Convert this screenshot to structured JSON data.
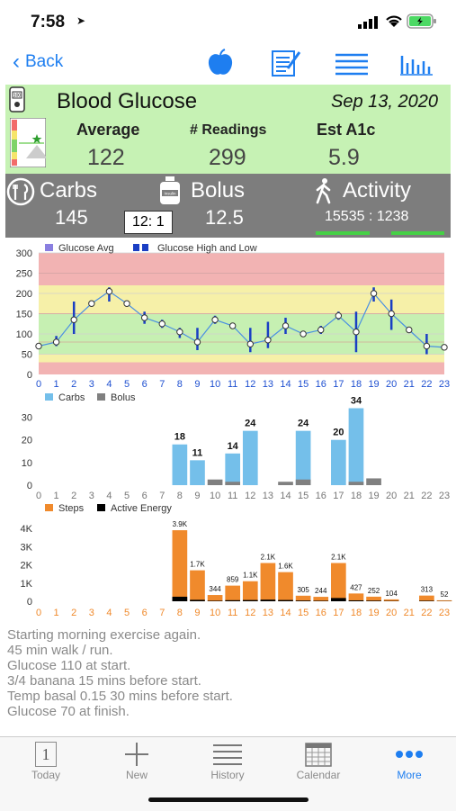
{
  "status": {
    "time": "7:58"
  },
  "nav": {
    "back_label": "Back"
  },
  "summary": {
    "title": "Blood Glucose",
    "date": "Sep 13, 2020",
    "average_label": "Average",
    "average_value": "122",
    "readings_label": "# Readings",
    "readings_value": "299",
    "a1c_label": "Est A1c",
    "a1c_value": "5.9",
    "meter_label": "100"
  },
  "totals": {
    "carbs_label": "Carbs",
    "carbs_value": "145",
    "bolus_label": "Bolus",
    "bolus_value": "12.5",
    "activity_label": "Activity",
    "activity_value": "15535 : 1238",
    "time_box": "12: 1",
    "bolus_icon_text": "Insulin"
  },
  "notes": [
    "Starting morning exercise again.",
    "45 min walk / run.",
    "Glucose 110 at start.",
    "3/4 banana 15 mins before start.",
    "Temp basal 0.15 30 mins before start.",
    "Glucose 70 at finish."
  ],
  "tabs": [
    {
      "label": "Today",
      "icon": "calendar-day-icon",
      "day": "1"
    },
    {
      "label": "New",
      "icon": "plus-icon"
    },
    {
      "label": "History",
      "icon": "list-icon"
    },
    {
      "label": "Calendar",
      "icon": "calendar-grid-icon"
    },
    {
      "label": "More",
      "icon": "more-dots-icon"
    }
  ],
  "colors": {
    "accent": "#1e7ef0",
    "green_panel": "#c6f2b4",
    "gray_panel": "#7d7d7d",
    "carbs": "#74bfea",
    "bolus": "#808080",
    "steps": "#f08a2c",
    "active_energy": "#000000",
    "glucose_line": "#4a90e2",
    "glucose_range": "#1a3fc4"
  },
  "chart_data": [
    {
      "type": "line",
      "legend": [
        "Glucose Avg",
        "Glucose High and Low"
      ],
      "x": [
        0,
        1,
        2,
        3,
        4,
        5,
        6,
        7,
        8,
        9,
        10,
        11,
        12,
        13,
        14,
        15,
        16,
        17,
        18,
        19,
        20,
        21,
        22,
        23
      ],
      "x_tick_labels": [
        "0",
        "1",
        "2",
        "3",
        "4",
        "5",
        "6",
        "7",
        "8",
        "9",
        "10",
        "11",
        "12",
        "13",
        "14",
        "15",
        "16",
        "17",
        "18",
        "19",
        "20",
        "21",
        "22",
        "23"
      ],
      "y_tick_labels": [
        "0",
        "50",
        "100",
        "150",
        "200",
        "250",
        "300"
      ],
      "ylim": [
        0,
        300
      ],
      "series": [
        {
          "name": "Glucose Avg",
          "values": [
            70,
            80,
            135,
            175,
            205,
            175,
            140,
            125,
            105,
            80,
            135,
            120,
            75,
            85,
            120,
            100,
            110,
            145,
            105,
            200,
            150,
            110,
            70,
            67
          ]
        },
        {
          "name": "Glucose High and Low",
          "low": [
            null,
            70,
            100,
            null,
            180,
            null,
            125,
            115,
            90,
            60,
            125,
            null,
            55,
            65,
            100,
            null,
            100,
            135,
            55,
            180,
            110,
            null,
            50,
            null
          ],
          "high": [
            null,
            95,
            180,
            null,
            215,
            null,
            155,
            135,
            115,
            115,
            145,
            null,
            115,
            130,
            140,
            null,
            120,
            155,
            155,
            215,
            185,
            null,
            100,
            null
          ]
        }
      ],
      "bands": [
        {
          "from": 0,
          "to": 30,
          "color": "#f2b3b3"
        },
        {
          "from": 30,
          "to": 50,
          "color": "#f6f0a8"
        },
        {
          "from": 50,
          "to": 150,
          "color": "#c6f0b2"
        },
        {
          "from": 150,
          "to": 220,
          "color": "#f6f0a8"
        },
        {
          "from": 220,
          "to": 300,
          "color": "#f2b3b3"
        }
      ]
    },
    {
      "type": "bar",
      "legend": [
        "Carbs",
        "Bolus"
      ],
      "categories": [
        "0",
        "1",
        "2",
        "3",
        "4",
        "5",
        "6",
        "7",
        "8",
        "9",
        "10",
        "11",
        "12",
        "13",
        "14",
        "15",
        "16",
        "17",
        "18",
        "19",
        "20",
        "21",
        "22",
        "23"
      ],
      "y_tick_labels": [
        "0",
        "10",
        "20",
        "30"
      ],
      "ylim": [
        0,
        35
      ],
      "series": [
        {
          "name": "Carbs",
          "values": [
            0,
            0,
            0,
            0,
            0,
            0,
            0,
            0,
            18,
            11,
            0,
            14,
            24,
            0,
            0,
            24,
            0,
            20,
            34,
            0,
            0,
            0,
            0,
            0
          ]
        },
        {
          "name": "Bolus",
          "values": [
            0,
            0,
            0,
            0,
            0,
            0,
            0,
            0,
            0,
            0,
            2.5,
            1.5,
            0,
            0,
            1.5,
            2.5,
            0,
            0,
            1.5,
            3,
            0,
            0,
            0,
            0
          ]
        }
      ],
      "data_labels": {
        "8": "18",
        "9": "11",
        "11": "14",
        "12": "24",
        "15": "24",
        "17": "20",
        "18": "34"
      }
    },
    {
      "type": "bar",
      "legend": [
        "Steps",
        "Active Energy"
      ],
      "categories": [
        "0",
        "1",
        "2",
        "3",
        "4",
        "5",
        "6",
        "7",
        "8",
        "9",
        "10",
        "11",
        "12",
        "13",
        "14",
        "15",
        "16",
        "17",
        "18",
        "19",
        "20",
        "21",
        "22",
        "23"
      ],
      "y_tick_labels": [
        "0",
        "1K",
        "2K",
        "3K",
        "4K"
      ],
      "ylim": [
        0,
        4200
      ],
      "series": [
        {
          "name": "Steps",
          "values": [
            0,
            0,
            0,
            0,
            0,
            0,
            0,
            0,
            3900,
            1700,
            344,
            859,
            1100,
            2100,
            1600,
            305,
            244,
            2100,
            427,
            252,
            104,
            0,
            313,
            52
          ]
        },
        {
          "name": "Active Energy",
          "values": [
            0,
            0,
            0,
            0,
            0,
            0,
            0,
            0,
            250,
            80,
            30,
            60,
            70,
            90,
            70,
            40,
            30,
            180,
            50,
            35,
            20,
            0,
            30,
            10
          ]
        }
      ],
      "data_labels": {
        "8": "3.9K",
        "9": "1.7K",
        "10": "344",
        "11": "859",
        "12": "1.1K",
        "13": "2.1K",
        "14": "1.6K",
        "15": "305",
        "16": "244",
        "17": "2.1K",
        "18": "427",
        "19": "252",
        "20": "104",
        "22": "313",
        "23": "52"
      }
    }
  ]
}
